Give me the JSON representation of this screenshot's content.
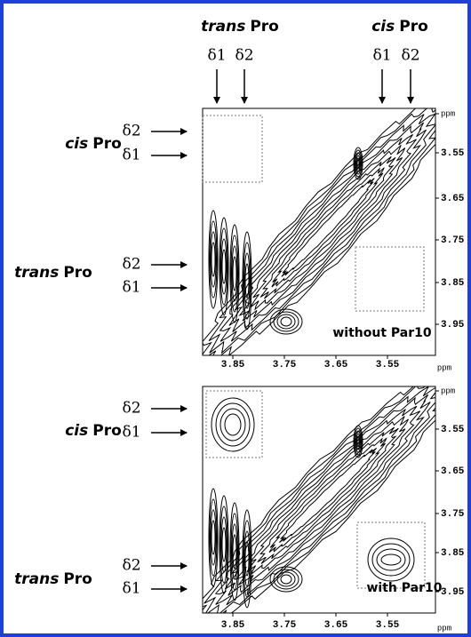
{
  "header": [
    {
      "word": "trans",
      "suffix": "Pro",
      "d1": "δ1",
      "d2": "δ2"
    },
    {
      "word": "cis",
      "suffix": "Pro",
      "d1": "δ1",
      "d2": "δ2"
    }
  ],
  "panels": [
    {
      "rows": [
        {
          "word": "cis",
          "suffix": "Pro",
          "d2": "δ2",
          "d1": "δ1"
        },
        {
          "word": "trans",
          "suffix": "Pro",
          "d2": "δ2",
          "d1": "δ1"
        }
      ],
      "y_ticks": [
        "ppm",
        "3.55",
        "3.65",
        "3.75",
        "3.85",
        "3.95"
      ],
      "x_ticks": [
        "3.85",
        "3.75",
        "3.65",
        "3.55",
        "ppm"
      ],
      "label": "without Par10"
    },
    {
      "rows": [
        {
          "word": "cis",
          "suffix": "Pro",
          "d2": "δ2",
          "d1": "δ1"
        },
        {
          "word": "trans",
          "suffix": "Pro",
          "d2": "δ2",
          "d1": "δ1"
        }
      ],
      "y_ticks": [
        "ppm",
        "3.55",
        "3.65",
        "3.75",
        "3.85",
        "3.95"
      ],
      "x_ticks": [
        "3.85",
        "3.75",
        "3.65",
        "3.55",
        "ppm"
      ],
      "label": "with Par10"
    }
  ]
}
